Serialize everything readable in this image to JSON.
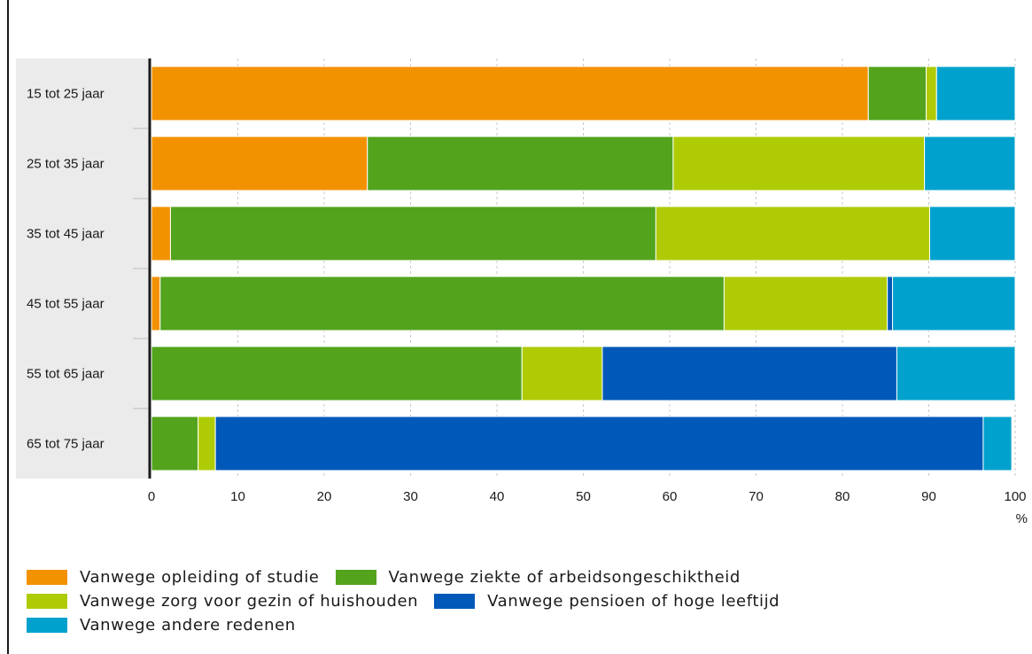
{
  "chart_data": {
    "type": "bar",
    "orientation": "horizontal",
    "stacked": true,
    "categories": [
      "15 tot 25 jaar",
      "25 tot 35 jaar",
      "35 tot 45 jaar",
      "45 tot 55 jaar",
      "55 tot 65 jaar",
      "65 tot 75 jaar"
    ],
    "series": [
      {
        "name": "Vanwege opleiding of studie",
        "color": "#f39200",
        "values": [
          83,
          25,
          2.2,
          1,
          0,
          0
        ]
      },
      {
        "name": "Vanwege ziekte of arbeidsongeschiktheid",
        "color": "#53a31d",
        "values": [
          6.7,
          35.4,
          56.2,
          65.3,
          42.9,
          5.4
        ]
      },
      {
        "name": "Vanwege zorg voor gezin of huishouden",
        "color": "#afcb05",
        "values": [
          1.2,
          29.1,
          31.7,
          18.9,
          9.3,
          2
        ]
      },
      {
        "name": "Vanwege pensioen of hoge leeftijd",
        "color": "#0058b8",
        "values": [
          0,
          0,
          0,
          0.6,
          34.1,
          88.9
        ]
      },
      {
        "name": "Vanwege andere redenen",
        "color": "#00a1cd",
        "values": [
          9.1,
          10.5,
          9.9,
          14.2,
          13.7,
          3.3
        ]
      }
    ],
    "xlim": [
      0,
      100
    ],
    "xticks": [
      "0",
      "10",
      "20",
      "30",
      "40",
      "50",
      "60",
      "70",
      "80",
      "90",
      "100"
    ],
    "xunit": "%",
    "grid": "vertical dashed",
    "legend_position": "bottom"
  },
  "legend_rows": [
    [
      0,
      1
    ],
    [
      2,
      3
    ],
    [
      4
    ]
  ]
}
